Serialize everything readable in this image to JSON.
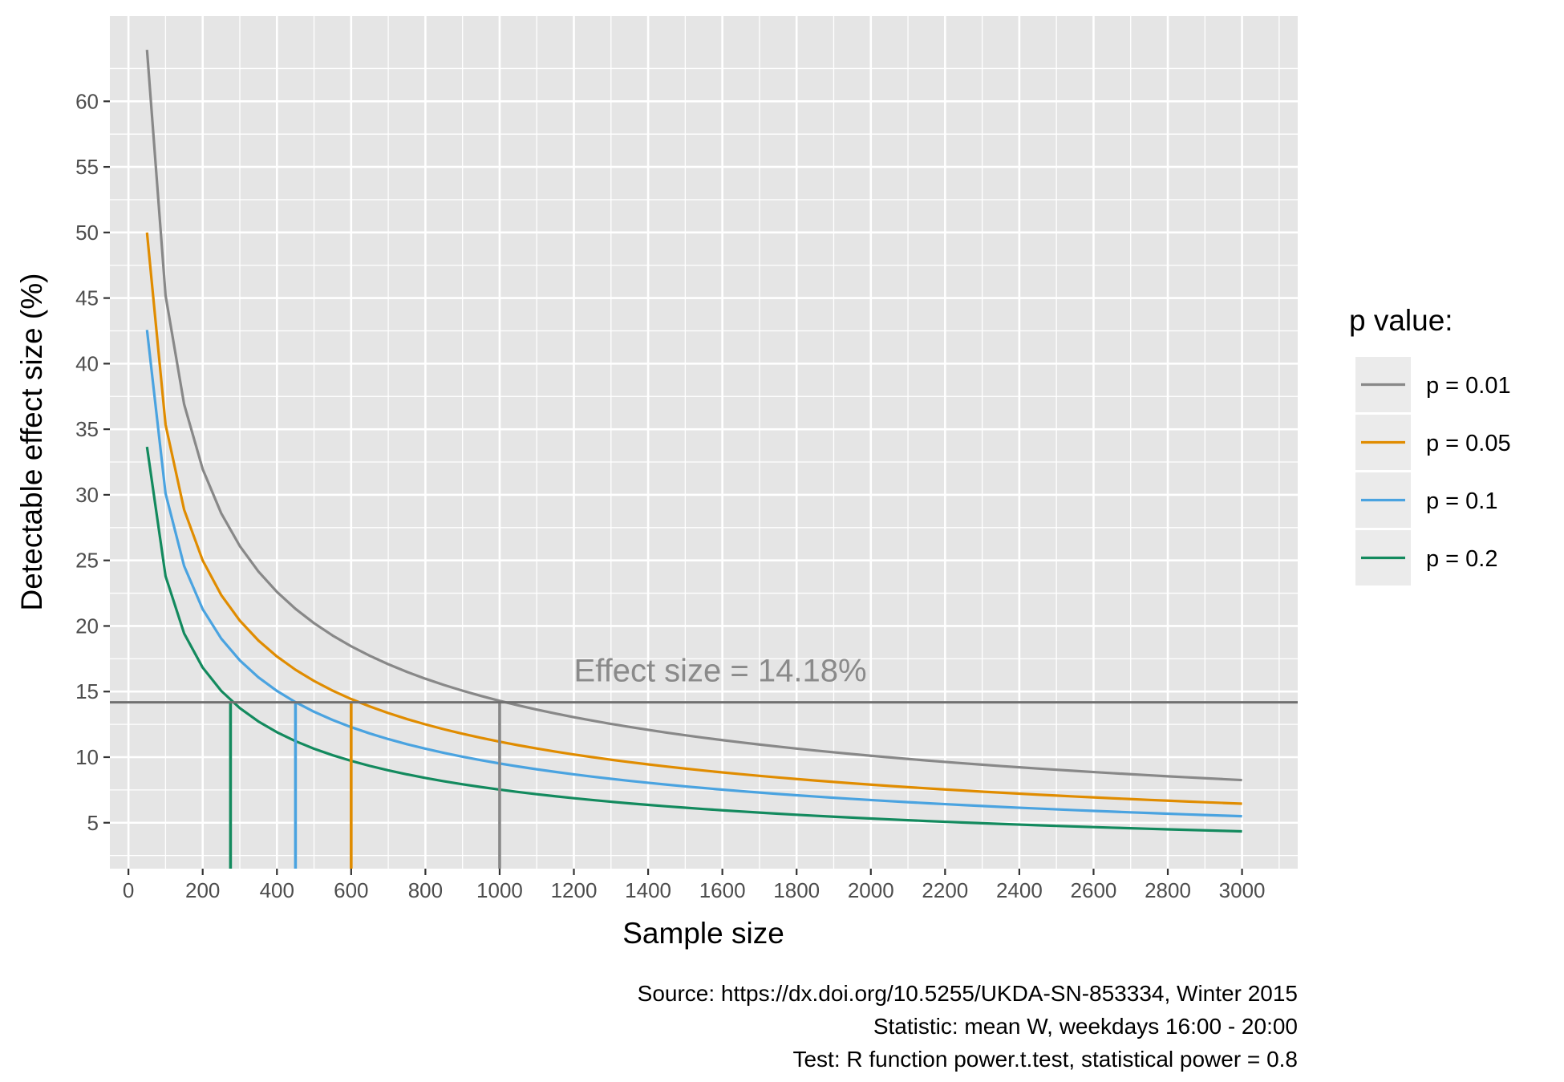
{
  "chart_data": {
    "type": "line",
    "title": "",
    "xlabel": "Sample size",
    "ylabel": "Detectable effect size (%)",
    "xlim": [
      -50,
      3150
    ],
    "ylim": [
      1.5,
      66.5
    ],
    "x_ticks": [
      0,
      200,
      400,
      600,
      800,
      1000,
      1200,
      1400,
      1600,
      1800,
      2000,
      2200,
      2400,
      2600,
      2800,
      3000
    ],
    "y_ticks": [
      5,
      10,
      15,
      20,
      25,
      30,
      35,
      40,
      45,
      50,
      55,
      60
    ],
    "x_minor_step": 100,
    "y_minor_step": 2.5,
    "grid": true,
    "legend": {
      "title": "p value:",
      "position": "right"
    },
    "series": [
      {
        "name": "p = 0.01",
        "color": "#888888",
        "k": 452,
        "x_start": 50,
        "x_end": 3000,
        "x_step": 50
      },
      {
        "name": "p = 0.05",
        "color": "#E08C00",
        "k": 353.5,
        "x_start": 50,
        "x_end": 3000,
        "x_step": 50
      },
      {
        "name": "p = 0.1",
        "color": "#4AA3E0",
        "k": 301,
        "x_start": 50,
        "x_end": 3000,
        "x_step": 50
      },
      {
        "name": "p = 0.2",
        "color": "#138A5E",
        "k": 238,
        "x_start": 50,
        "x_end": 3000,
        "x_step": 50
      }
    ],
    "threshold": {
      "y": 14.18,
      "color": "#707070",
      "label": "Effect size = 14.18%",
      "label_x": 1200
    },
    "vertical_markers": [
      {
        "x": 1000,
        "color": "#888888"
      },
      {
        "x": 600,
        "color": "#E08C00"
      },
      {
        "x": 450,
        "color": "#4AA3E0"
      },
      {
        "x": 275,
        "color": "#138A5E"
      }
    ]
  },
  "caption": [
    "Source: https://dx.doi.org/10.5255/UKDA-SN-853334, Winter 2015",
    "Statistic: mean W, weekdays 16:00 - 20:00",
    "Test: R function power.t.test, statistical power = 0.8"
  ],
  "colors": {
    "panel_bg": "#E5E5E5",
    "grid": "#FFFFFF",
    "legend_key_bg": "#EBEBEB"
  }
}
